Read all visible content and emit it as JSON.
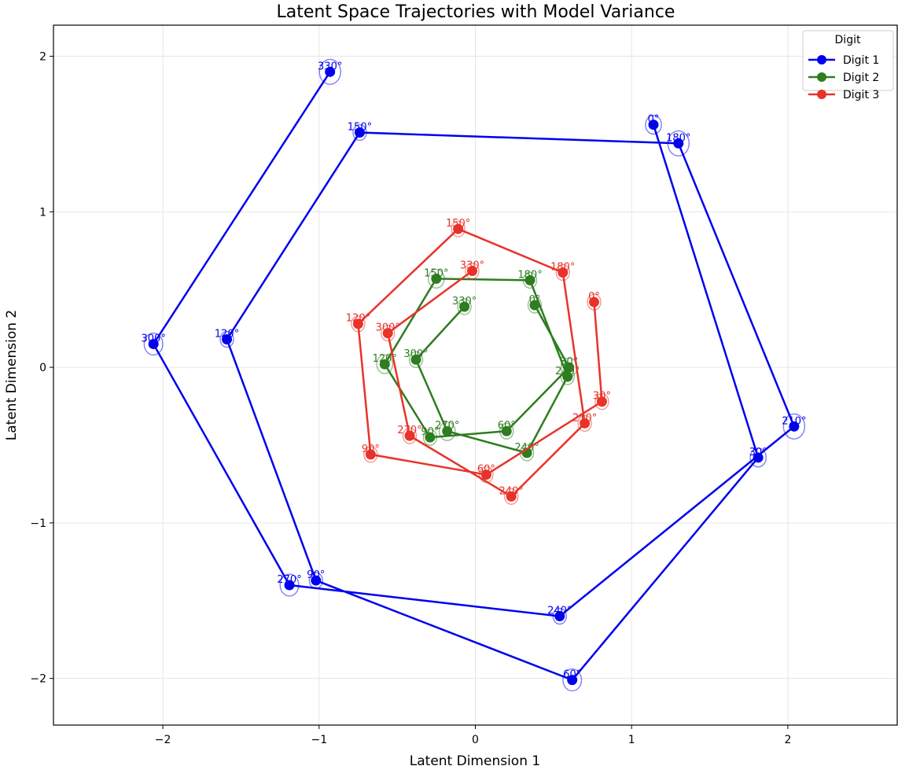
{
  "chart_data": {
    "type": "line",
    "title": "Latent Space Trajectories with Model Variance",
    "xlabel": "Latent Dimension 1",
    "ylabel": "Latent Dimension 2",
    "xlim": [
      -2.7,
      2.7
    ],
    "ylim": [
      -2.3,
      2.2
    ],
    "xticks": [
      -2,
      -1,
      0,
      1,
      2
    ],
    "yticks": [
      -2,
      -1,
      0,
      1,
      2
    ],
    "grid": true,
    "legend": {
      "title": "Digit",
      "placement": "top-right"
    },
    "series": [
      {
        "name": "Digit 1",
        "color": "#0000ee",
        "points": [
          {
            "label": "0°",
            "x": 1.14,
            "y": 1.56,
            "var": 0.06
          },
          {
            "label": "30°",
            "x": 1.81,
            "y": -0.58,
            "var": 0.06
          },
          {
            "label": "60°",
            "x": 0.62,
            "y": -2.01,
            "var": 0.07
          },
          {
            "label": "90°",
            "x": -1.02,
            "y": -1.37,
            "var": 0.05
          },
          {
            "label": "120°",
            "x": -1.59,
            "y": 0.18,
            "var": 0.05
          },
          {
            "label": "150°",
            "x": -0.74,
            "y": 1.51,
            "var": 0.05
          },
          {
            "label": "180°",
            "x": 1.3,
            "y": 1.44,
            "var": 0.08
          },
          {
            "label": "210°",
            "x": 2.04,
            "y": -0.38,
            "var": 0.08
          },
          {
            "label": "240°",
            "x": 0.54,
            "y": -1.6,
            "var": 0.05
          },
          {
            "label": "270°",
            "x": -1.19,
            "y": -1.4,
            "var": 0.07
          },
          {
            "label": "300°",
            "x": -2.06,
            "y": 0.15,
            "var": 0.07
          },
          {
            "label": "330°",
            "x": -0.93,
            "y": 1.9,
            "var": 0.08
          }
        ]
      },
      {
        "name": "Digit 2",
        "color": "#2e7d20",
        "points": [
          {
            "label": "0°",
            "x": 0.38,
            "y": 0.4,
            "var": 0.05
          },
          {
            "label": "30°",
            "x": 0.6,
            "y": 0.0,
            "var": 0.06
          },
          {
            "label": "60°",
            "x": 0.2,
            "y": -0.41,
            "var": 0.05
          },
          {
            "label": "90°",
            "x": -0.29,
            "y": -0.45,
            "var": 0.05
          },
          {
            "label": "120°",
            "x": -0.58,
            "y": 0.02,
            "var": 0.06
          },
          {
            "label": "150°",
            "x": -0.25,
            "y": 0.57,
            "var": 0.06
          },
          {
            "label": "180°",
            "x": 0.35,
            "y": 0.56,
            "var": 0.05
          },
          {
            "label": "210°",
            "x": 0.59,
            "y": -0.06,
            "var": 0.05
          },
          {
            "label": "240°",
            "x": 0.33,
            "y": -0.55,
            "var": 0.05
          },
          {
            "label": "270°",
            "x": -0.18,
            "y": -0.41,
            "var": 0.06
          },
          {
            "label": "300°",
            "x": -0.38,
            "y": 0.05,
            "var": 0.05
          },
          {
            "label": "330°",
            "x": -0.07,
            "y": 0.39,
            "var": 0.05
          }
        ]
      },
      {
        "name": "Digit 3",
        "color": "#e8332a",
        "points": [
          {
            "label": "0°",
            "x": 0.76,
            "y": 0.42,
            "var": 0.05
          },
          {
            "label": "30°",
            "x": 0.81,
            "y": -0.22,
            "var": 0.05
          },
          {
            "label": "60°",
            "x": 0.07,
            "y": -0.69,
            "var": 0.05
          },
          {
            "label": "90°",
            "x": -0.67,
            "y": -0.56,
            "var": 0.05
          },
          {
            "label": "120°",
            "x": -0.75,
            "y": 0.28,
            "var": 0.05
          },
          {
            "label": "150°",
            "x": -0.11,
            "y": 0.89,
            "var": 0.05
          },
          {
            "label": "180°",
            "x": 0.56,
            "y": 0.61,
            "var": 0.05
          },
          {
            "label": "210°",
            "x": 0.7,
            "y": -0.36,
            "var": 0.05
          },
          {
            "label": "240°",
            "x": 0.23,
            "y": -0.83,
            "var": 0.05
          },
          {
            "label": "270°",
            "x": -0.42,
            "y": -0.44,
            "var": 0.05
          },
          {
            "label": "300°",
            "x": -0.56,
            "y": 0.22,
            "var": 0.05
          },
          {
            "label": "330°",
            "x": -0.02,
            "y": 0.62,
            "var": 0.05
          }
        ]
      }
    ]
  }
}
